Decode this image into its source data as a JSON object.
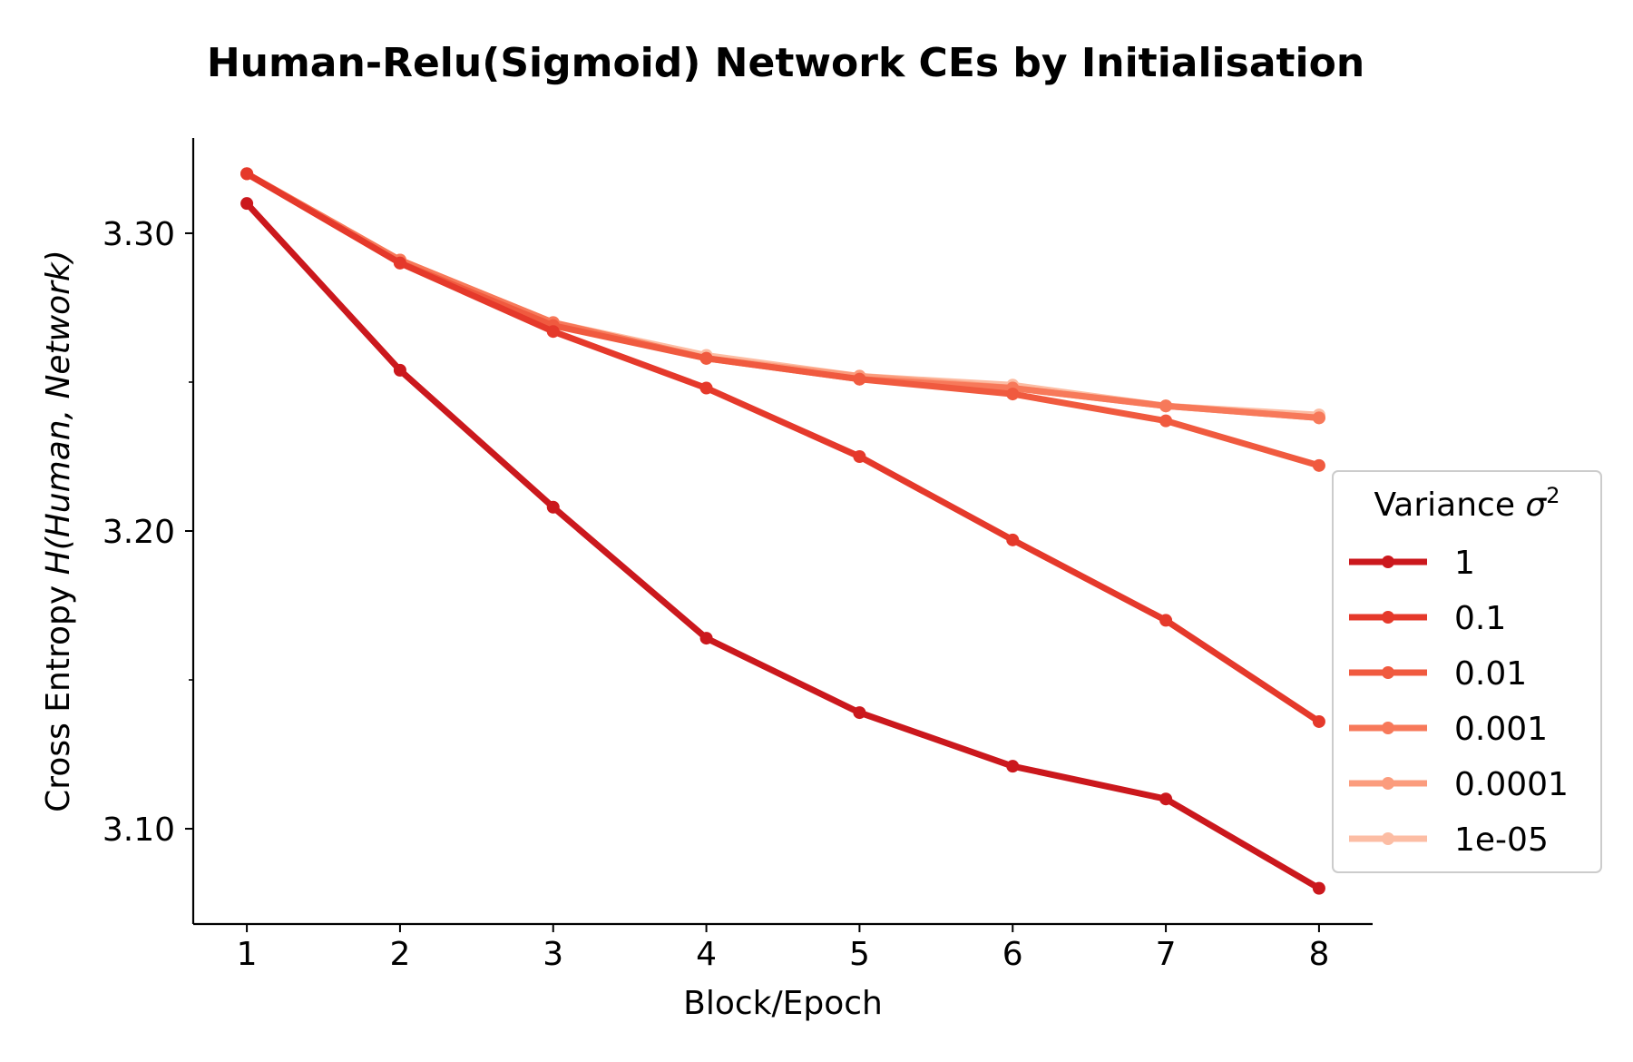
{
  "chart_data": {
    "type": "line",
    "title": "Human-Relu(Sigmoid) Network CEs by Initialisation",
    "xlabel": "Block/Epoch",
    "ylabel_prefix": "Cross Entropy ",
    "ylabel_math": "H(Human, Network)",
    "x": [
      1,
      2,
      3,
      4,
      5,
      6,
      7,
      8
    ],
    "xlim": [
      0.65,
      8.35
    ],
    "ylim": [
      3.068,
      3.332
    ],
    "y_major_ticks": [
      3.1,
      3.2,
      3.3
    ],
    "y_major_tick_labels": [
      "3.10",
      "3.20",
      "3.30"
    ],
    "y_minor_ticks": [
      3.15,
      3.25
    ],
    "grid": false,
    "legend": {
      "title_prefix": "Variance ",
      "title_symbol": "σ",
      "title_superscript": "2",
      "placement": "right"
    },
    "series": [
      {
        "name": "1",
        "color": "#cb181d",
        "values": [
          3.31,
          3.254,
          3.208,
          3.164,
          3.139,
          3.121,
          3.11,
          3.08
        ]
      },
      {
        "name": "0.1",
        "color": "#e5392b",
        "values": [
          3.32,
          3.29,
          3.267,
          3.248,
          3.225,
          3.197,
          3.17,
          3.136
        ]
      },
      {
        "name": "0.01",
        "color": "#f05a3f",
        "values": [
          3.32,
          3.29,
          3.269,
          3.258,
          3.251,
          3.246,
          3.237,
          3.222
        ]
      },
      {
        "name": "0.001",
        "color": "#f7795a",
        "values": [
          3.32,
          3.291,
          3.27,
          3.258,
          3.251,
          3.248,
          3.242,
          3.238
        ]
      },
      {
        "name": "0.0001",
        "color": "#fb9c7d",
        "values": [
          3.32,
          3.291,
          3.27,
          3.258,
          3.252,
          3.248,
          3.242,
          3.238
        ]
      },
      {
        "name": "1e-05",
        "color": "#fcbda4",
        "values": [
          3.32,
          3.291,
          3.27,
          3.259,
          3.252,
          3.249,
          3.242,
          3.239
        ]
      }
    ]
  }
}
